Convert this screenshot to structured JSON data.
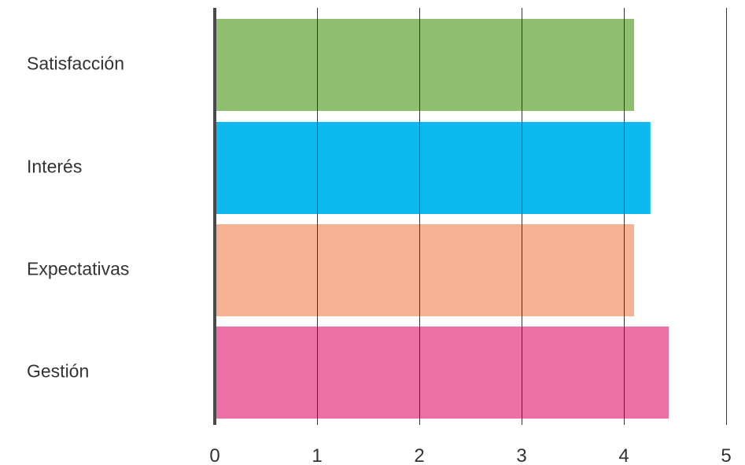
{
  "chart_data": {
    "type": "bar",
    "orientation": "horizontal",
    "title": "",
    "xlabel": "",
    "ylabel": "",
    "categories": [
      "Satisfacción",
      "Interés",
      "Expectativas",
      "Gestión"
    ],
    "values": [
      4.1,
      4.26,
      4.1,
      4.44
    ],
    "colors": [
      "#8dbf6f",
      "#0db9ee",
      "#f6b192",
      "#ec6fa6"
    ],
    "xlim": [
      0,
      5
    ],
    "x_ticks": [
      0,
      1,
      2,
      3,
      4,
      5
    ],
    "x_tick_labels": [
      "0",
      "1",
      "2",
      "3",
      "4",
      "5"
    ],
    "grid": "vertical",
    "legend": "none"
  }
}
